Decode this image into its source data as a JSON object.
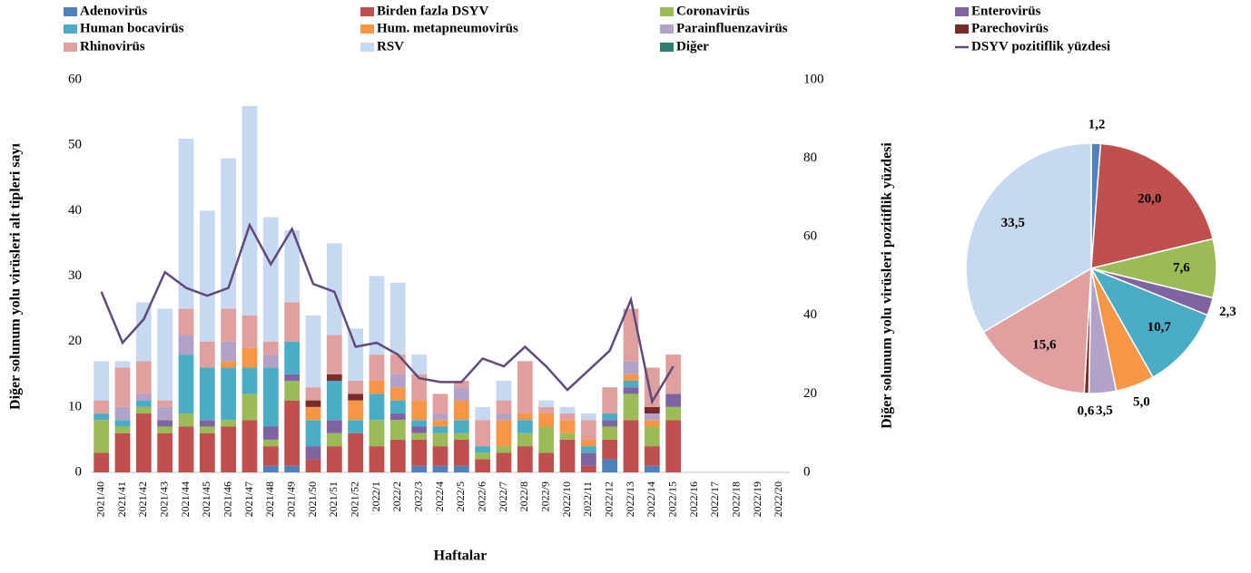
{
  "chart_data": [
    {
      "type": "bar",
      "stacked": true,
      "xlabel": "Haftalar",
      "ylabel": "Diğer solunum yolu virüsleri alt tipleri sayı",
      "categories": [
        "2021/40",
        "2021/41",
        "2021/42",
        "2021/43",
        "2021/44",
        "2021/45",
        "2021/46",
        "2021/47",
        "2021/48",
        "2021/49",
        "2021/50",
        "2021/51",
        "2021/52",
        "2022/1",
        "2022/2",
        "2022/3",
        "2022/4",
        "2022/5",
        "2022/6",
        "2022/7",
        "2022/8",
        "2022/9",
        "2022/10",
        "2022/11",
        "2022/12",
        "2022/13",
        "2022/14",
        "2022/15",
        "2022/16",
        "2022/17",
        "2022/18",
        "2022/19",
        "2022/20"
      ],
      "ylim": [
        0,
        60
      ],
      "yticks": [
        0,
        10,
        20,
        30,
        40,
        50,
        60
      ],
      "y2lim": [
        0,
        100
      ],
      "y2ticks": [
        0,
        20,
        40,
        60,
        80,
        100
      ],
      "grid": false,
      "series": [
        {
          "name": "Adenovirüs",
          "color": "#4f81bd",
          "values": [
            0,
            0,
            0,
            0,
            0,
            0,
            0,
            0,
            1,
            1,
            0,
            0,
            0,
            0,
            0,
            1,
            1,
            1,
            0,
            0,
            0,
            0,
            0,
            0,
            2,
            0,
            1,
            0,
            null,
            null,
            null,
            null,
            null
          ]
        },
        {
          "name": "Birden fazla DSYV",
          "color": "#c0504d",
          "values": [
            3,
            6,
            9,
            6,
            7,
            6,
            7,
            8,
            3,
            10,
            2,
            4,
            6,
            4,
            5,
            4,
            3,
            4,
            2,
            3,
            4,
            3,
            5,
            1,
            3,
            8,
            3,
            8,
            null,
            null,
            null,
            null,
            null
          ]
        },
        {
          "name": "Coronavirüs",
          "color": "#9bbb59",
          "values": [
            5,
            1,
            1,
            1,
            2,
            1,
            1,
            4,
            1,
            3,
            0,
            2,
            0,
            4,
            3,
            1,
            2,
            1,
            1,
            1,
            2,
            4,
            1,
            0,
            2,
            4,
            3,
            2,
            null,
            null,
            null,
            null,
            null
          ]
        },
        {
          "name": "Enterovirüs",
          "color": "#8064a2",
          "values": [
            0,
            0,
            0,
            1,
            0,
            1,
            0,
            0,
            2,
            1,
            2,
            2,
            0,
            0,
            1,
            1,
            0,
            0,
            0,
            0,
            0,
            0,
            0,
            2,
            1,
            1,
            0,
            2,
            null,
            null,
            null,
            null,
            null
          ]
        },
        {
          "name": "Human bocavirüs",
          "color": "#4bacc6",
          "values": [
            1,
            1,
            1,
            0,
            9,
            8,
            8,
            4,
            9,
            5,
            4,
            6,
            2,
            4,
            2,
            1,
            1,
            2,
            1,
            0,
            2,
            0,
            0,
            1,
            1,
            1,
            0,
            0,
            null,
            null,
            null,
            null,
            null
          ]
        },
        {
          "name": "Hum. metapneumovirüs",
          "color": "#f79646",
          "values": [
            0,
            0,
            0,
            0,
            0,
            0,
            1,
            3,
            0,
            0,
            2,
            0,
            3,
            2,
            2,
            3,
            1,
            3,
            0,
            4,
            1,
            2,
            2,
            1,
            0,
            1,
            1,
            0,
            null,
            null,
            null,
            null,
            null
          ]
        },
        {
          "name": "Parainfluenzavirüs",
          "color": "#b3a2c7",
          "values": [
            0,
            2,
            1,
            2,
            3,
            0,
            3,
            0,
            2,
            0,
            0,
            0,
            0,
            0,
            2,
            0,
            1,
            2,
            0,
            1,
            0,
            0,
            0,
            0,
            0,
            2,
            1,
            0,
            null,
            null,
            null,
            null,
            null
          ]
        },
        {
          "name": "Parechovirüs",
          "color": "#772c2a",
          "values": [
            0,
            0,
            0,
            0,
            0,
            0,
            0,
            0,
            0,
            0,
            1,
            1,
            1,
            0,
            0,
            0,
            0,
            0,
            0,
            0,
            0,
            0,
            0,
            0,
            0,
            0,
            1,
            0,
            null,
            null,
            null,
            null,
            null
          ]
        },
        {
          "name": "Rhinovirüs",
          "color": "#e0a09f",
          "values": [
            2,
            6,
            5,
            1,
            4,
            4,
            5,
            5,
            2,
            6,
            2,
            6,
            2,
            4,
            3,
            4,
            3,
            1,
            4,
            2,
            8,
            1,
            1,
            3,
            4,
            8,
            6,
            6,
            null,
            null,
            null,
            null,
            null
          ]
        },
        {
          "name": "RSV",
          "color": "#c6d9f0",
          "values": [
            6,
            1,
            9,
            14,
            26,
            20,
            23,
            32,
            19,
            11,
            11,
            14,
            8,
            12,
            11,
            3,
            0,
            0,
            2,
            3,
            0,
            1,
            1,
            1,
            0,
            0,
            0,
            0,
            null,
            null,
            null,
            null,
            null
          ]
        },
        {
          "name": "Diğer",
          "color": "#2e7d6e",
          "values": [
            0,
            0,
            0,
            0,
            0,
            0,
            0,
            0,
            0,
            0,
            0,
            0,
            0,
            0,
            0,
            0,
            0,
            0,
            0,
            0,
            0,
            0,
            0,
            0,
            0,
            0,
            0,
            0,
            null,
            null,
            null,
            null,
            null
          ]
        },
        {
          "name": "DSYV pozitiflik yüzdesi",
          "type": "line",
          "axis": "y2",
          "color": "#604a7b",
          "values": [
            46,
            33,
            39,
            51,
            47,
            45,
            47,
            63,
            53,
            62,
            48,
            46,
            32,
            33,
            30,
            24,
            23,
            23,
            29,
            27,
            32,
            27,
            21,
            26,
            31,
            44,
            18,
            27,
            null,
            null,
            null,
            null,
            null
          ]
        }
      ]
    },
    {
      "type": "pie",
      "ylabel": "Diğer solunum yolu virüsleri pozitiflik yüzdesi",
      "values": [
        1.2,
        20.0,
        7.6,
        2.3,
        10.7,
        5.0,
        3.5,
        0.6,
        15.6,
        33.5
      ],
      "value_labels": [
        "1,2",
        "20,0",
        "7,6",
        "2,3",
        "10,7",
        "5,0",
        "3,5",
        "0,6",
        "15,6",
        "33,5"
      ],
      "colors": [
        "#4f81bd",
        "#c0504d",
        "#9bbb59",
        "#8064a2",
        "#4bacc6",
        "#f79646",
        "#b3a2c7",
        "#772c2a",
        "#e0a09f",
        "#c6d9f0"
      ]
    }
  ]
}
